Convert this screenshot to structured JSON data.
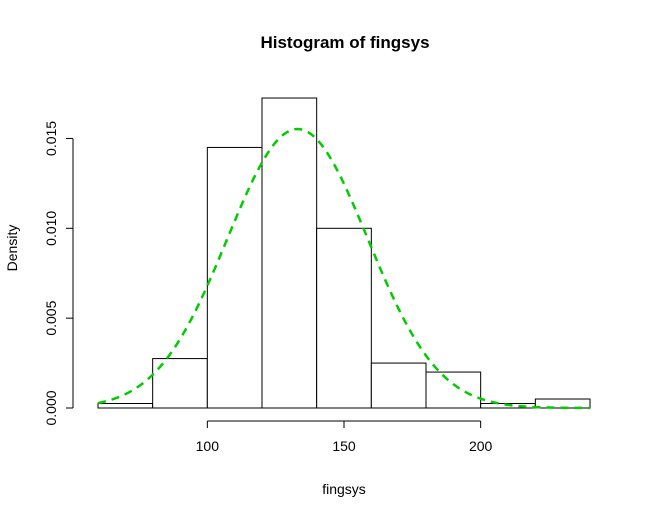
{
  "chart_data": {
    "type": "bar",
    "title": "Histogram of fingsys",
    "xlabel": "fingsys",
    "ylabel": "Density",
    "xlim": [
      60,
      240
    ],
    "ylim": [
      0,
      0.0175
    ],
    "x_ticks": [
      100,
      150,
      200
    ],
    "y_ticks": [
      0.0,
      0.005,
      0.01,
      0.015
    ],
    "y_tick_labels": [
      "0.000",
      "0.005",
      "0.010",
      "0.015"
    ],
    "bins": [
      {
        "from": 60,
        "to": 80,
        "density": 0.00025
      },
      {
        "from": 80,
        "to": 100,
        "density": 0.00275
      },
      {
        "from": 100,
        "to": 120,
        "density": 0.0145
      },
      {
        "from": 120,
        "to": 140,
        "density": 0.01725
      },
      {
        "from": 140,
        "to": 160,
        "density": 0.01
      },
      {
        "from": 160,
        "to": 180,
        "density": 0.0025
      },
      {
        "from": 180,
        "to": 200,
        "density": 0.002
      },
      {
        "from": 200,
        "to": 220,
        "density": 0.00025
      },
      {
        "from": 220,
        "to": 240,
        "density": 0.0005
      }
    ],
    "curve": {
      "type": "normal-density",
      "mean": 133,
      "sd": 25.7,
      "color": "#00cc00",
      "style": "dashed"
    }
  }
}
